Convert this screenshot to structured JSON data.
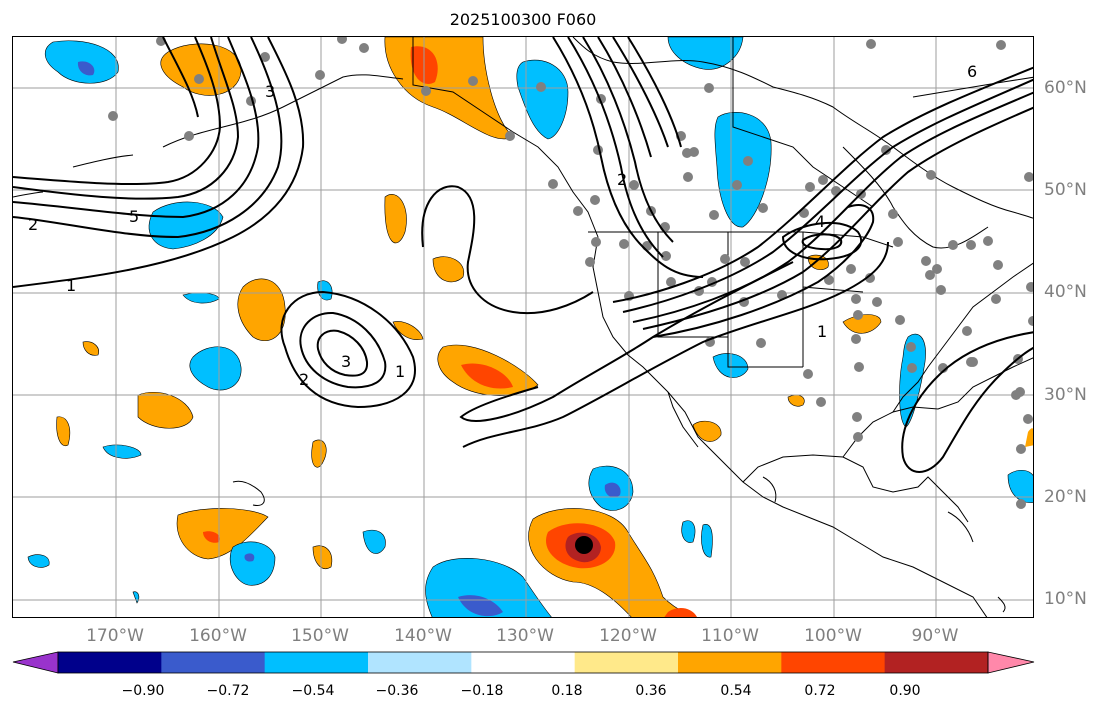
{
  "title": "2025100300 F060",
  "lon_labels": [
    "170°W",
    "160°W",
    "150°W",
    "140°W",
    "130°W",
    "120°W",
    "110°W",
    "100°W",
    "90°W"
  ],
  "lat_labels": [
    "60°N",
    "50°N",
    "40°N",
    "30°N",
    "20°N",
    "10°N"
  ],
  "contour_labels": [
    "1",
    "2",
    "3",
    "5",
    "6",
    "4",
    "2",
    "3",
    "1",
    "2",
    "1"
  ],
  "colorbar": {
    "ticks": [
      "−0.90",
      "−0.72",
      "−0.54",
      "−0.36",
      "−0.18",
      "0.18",
      "0.36",
      "0.54",
      "0.72",
      "0.90"
    ],
    "colors": [
      "#9933cc",
      "#00008b",
      "#3a5bcc",
      "#00bfff",
      "#b0e4ff",
      "#ffffff",
      "#ffe98a",
      "#ffa500",
      "#ff4500",
      "#b22222",
      "#ff88aa"
    ]
  }
}
